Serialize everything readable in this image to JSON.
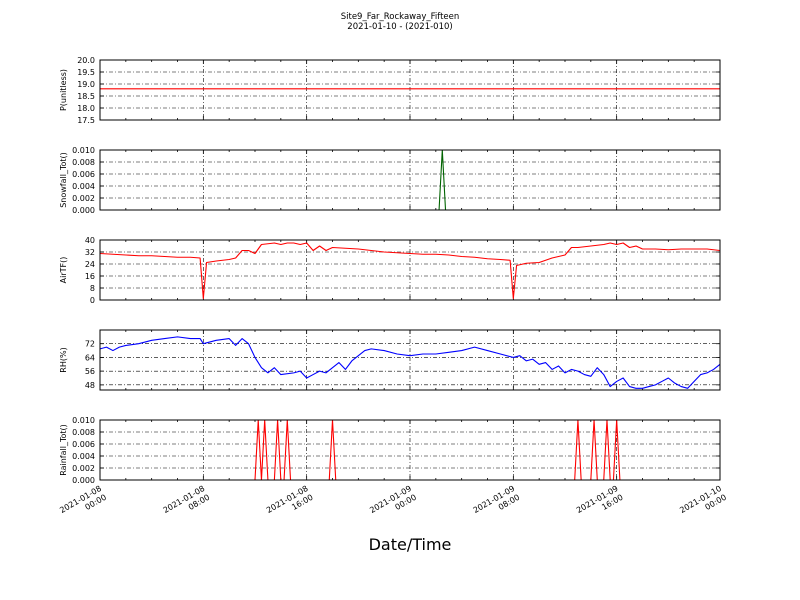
{
  "title": "Site9_Far_Rockaway_Fifteen",
  "subtitle": "2021-01-10 - (2021-010)",
  "xlabel": "Date/Time",
  "x_ticks": [
    {
      "line1": "2021-01-08",
      "line2": "00:00"
    },
    {
      "line1": "2021-01-08",
      "line2": "08:00"
    },
    {
      "line1": "2021-01-08",
      "line2": "16:00"
    },
    {
      "line1": "2021-01-09",
      "line2": "00:00"
    },
    {
      "line1": "2021-01-09",
      "line2": "08:00"
    },
    {
      "line1": "2021-01-09",
      "line2": "16:00"
    },
    {
      "line1": "2021-01-10",
      "line2": "00:00"
    }
  ],
  "colors": {
    "p": "#ff0000",
    "snow": "#006400",
    "airt": "#ff0000",
    "rh": "#0000ff",
    "rain": "#ff0000"
  },
  "chart_data": [
    {
      "id": "p",
      "type": "line",
      "ylabel": "P(unitless)",
      "x_range": [
        "2021-01-08 00:00",
        "2021-01-10 00:00"
      ],
      "ylim": [
        17.5,
        20.0
      ],
      "yticks": [
        "17.5",
        "18.0",
        "18.5",
        "19.0",
        "19.5",
        "20.0"
      ],
      "grid": true,
      "x": [
        0,
        48
      ],
      "values": [
        18.8,
        18.8
      ]
    },
    {
      "id": "snow",
      "type": "line",
      "ylabel": "Snowfall_Tot()",
      "x_range": [
        "2021-01-08 00:00",
        "2021-01-10 00:00"
      ],
      "ylim": [
        0.0,
        0.01
      ],
      "yticks": [
        "0.000",
        "0.002",
        "0.004",
        "0.006",
        "0.008",
        "0.010"
      ],
      "grid": true,
      "x": [
        0,
        26.25,
        26.5,
        26.75,
        48
      ],
      "values": [
        0,
        0,
        0.01,
        0,
        0
      ]
    },
    {
      "id": "airt",
      "type": "line",
      "ylabel": "AirTF()",
      "x_range": [
        "2021-01-08 00:00",
        "2021-01-10 00:00"
      ],
      "ylim": [
        0,
        40
      ],
      "yticks": [
        "0",
        "8",
        "16",
        "24",
        "32",
        "40"
      ],
      "grid": true,
      "x": [
        0,
        1,
        2,
        3,
        4,
        5,
        6,
        7,
        7.75,
        8,
        8.25,
        9,
        10,
        10.5,
        11,
        11.5,
        12,
        12.5,
        13,
        13.5,
        14,
        14.5,
        15,
        15.5,
        16,
        16.5,
        17,
        17.5,
        18,
        19,
        20,
        21,
        22,
        23,
        24,
        25,
        26,
        27,
        28,
        29,
        30,
        31,
        31.75,
        32,
        32.25,
        33,
        34,
        35,
        36,
        36.5,
        37,
        38,
        39,
        39.5,
        40,
        40.5,
        41,
        41.5,
        42,
        43,
        44,
        45,
        46,
        47,
        48
      ],
      "values": [
        31,
        30.5,
        30,
        29.5,
        29.5,
        29,
        28.5,
        28.5,
        28,
        1,
        25,
        26,
        27,
        28,
        33,
        33,
        31,
        37,
        37.5,
        38,
        37,
        38,
        38,
        37,
        38,
        33,
        36,
        33,
        35,
        34.5,
        34,
        33,
        32,
        31.5,
        31,
        30.5,
        30.5,
        30,
        29,
        28.5,
        27.5,
        27,
        26.5,
        1,
        23,
        24.5,
        25,
        28,
        30,
        35,
        35,
        36,
        37,
        38,
        37,
        38,
        35,
        36,
        34,
        34,
        33.5,
        34,
        34,
        34,
        33
      ]
    },
    {
      "id": "rh",
      "type": "line",
      "ylabel": "RH(%)",
      "x_range": [
        "2021-01-08 00:00",
        "2021-01-10 00:00"
      ],
      "ylim": [
        45,
        80
      ],
      "yticks": [
        "48",
        "56",
        "64",
        "72"
      ],
      "ytick_values": [
        48,
        56,
        64,
        72,
        80
      ],
      "grid": true,
      "x": [
        0,
        0.5,
        1,
        1.5,
        2,
        3,
        4,
        5,
        6,
        7,
        7.75,
        8,
        9,
        10,
        10.5,
        11,
        11.5,
        12,
        12.5,
        13,
        13.5,
        14,
        15,
        15.5,
        16,
        16.5,
        17,
        17.5,
        18,
        18.5,
        19,
        19.5,
        20,
        20.5,
        21,
        22,
        23,
        24,
        25,
        26,
        27,
        28,
        29,
        30,
        31,
        32,
        32.5,
        33,
        33.5,
        34,
        34.5,
        35,
        35.5,
        36,
        36.5,
        37,
        37.5,
        38,
        38.5,
        39,
        39.5,
        40,
        40.5,
        41,
        41.5,
        42,
        42.5,
        43,
        43.5,
        44,
        44.5,
        45,
        45.5,
        46,
        46.5,
        47,
        47.5,
        48
      ],
      "values": [
        69,
        70,
        68,
        70,
        71,
        72,
        74,
        75,
        76,
        75,
        75,
        72,
        74,
        75,
        71,
        75,
        72,
        64,
        58,
        55,
        58,
        54,
        55,
        56,
        52,
        54,
        56,
        55,
        58,
        61,
        57,
        62,
        65,
        68,
        69,
        68,
        66,
        65,
        66,
        66,
        67,
        68,
        70,
        68,
        66,
        64,
        65,
        62,
        63,
        60,
        61,
        57,
        59,
        55,
        57,
        56,
        54,
        53,
        58,
        54,
        47,
        50,
        52,
        47,
        46,
        46,
        47,
        48,
        50,
        52,
        49,
        47,
        46,
        50,
        54,
        55,
        57,
        60
      ]
    },
    {
      "id": "rain",
      "type": "line",
      "ylabel": "Rainfall_Tot()",
      "x_range": [
        "2021-01-08 00:00",
        "2021-01-10 00:00"
      ],
      "ylim": [
        0.0,
        0.01
      ],
      "yticks": [
        "0.000",
        "0.002",
        "0.004",
        "0.006",
        "0.008",
        "0.010"
      ],
      "grid": true,
      "x": [
        0,
        12,
        12.25,
        12.5,
        12.75,
        13,
        13.5,
        13.75,
        14,
        14.25,
        14.5,
        14.75,
        15,
        17.75,
        18,
        18.25,
        36.75,
        37,
        37.25,
        38,
        38.25,
        38.5,
        39,
        39.25,
        39.5,
        39.75,
        40,
        40.25,
        48
      ],
      "values": [
        0,
        0,
        0.01,
        0,
        0.01,
        0,
        0,
        0.01,
        0,
        0,
        0.01,
        0,
        0,
        0,
        0.01,
        0,
        0,
        0.01,
        0,
        0,
        0.01,
        0,
        0,
        0.01,
        0,
        0,
        0.01,
        0,
        0
      ]
    }
  ]
}
